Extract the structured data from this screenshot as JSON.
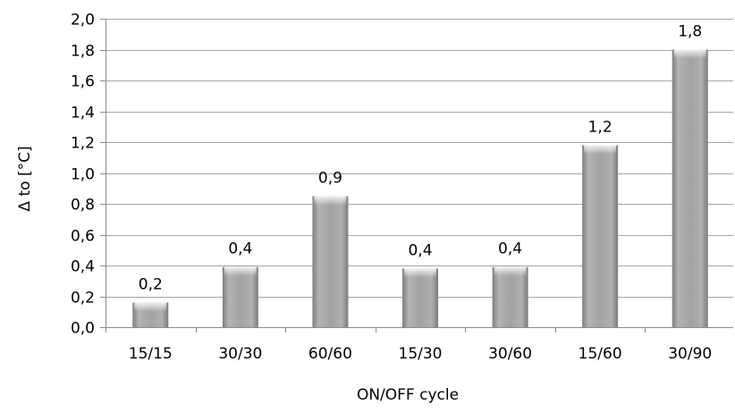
{
  "chart_data": {
    "type": "bar",
    "categories": [
      "15/15",
      "30/30",
      "60/60",
      "15/30",
      "30/60",
      "15/60",
      "30/90"
    ],
    "values": [
      0.16,
      0.39,
      0.85,
      0.38,
      0.39,
      1.18,
      1.8
    ],
    "data_labels": [
      "0,2",
      "0,4",
      "0,9",
      "0,4",
      "0,4",
      "1,2",
      "1,8"
    ],
    "title": "",
    "xlabel": "ON/OFF cycle",
    "ylabel": "Δ to [°C]",
    "ylim": [
      0,
      2.0
    ],
    "ytick_values": [
      0,
      0.2,
      0.4,
      0.6,
      0.8,
      1.0,
      1.2,
      1.4,
      1.6,
      1.8,
      2.0
    ],
    "ytick_labels": [
      "0,0",
      "0,2",
      "0,4",
      "0,6",
      "0,8",
      "1,0",
      "1,2",
      "1,4",
      "1,6",
      "1,8",
      "2,0"
    ],
    "grid": true,
    "legend": "none",
    "bar_color": "#a6a6a6"
  }
}
